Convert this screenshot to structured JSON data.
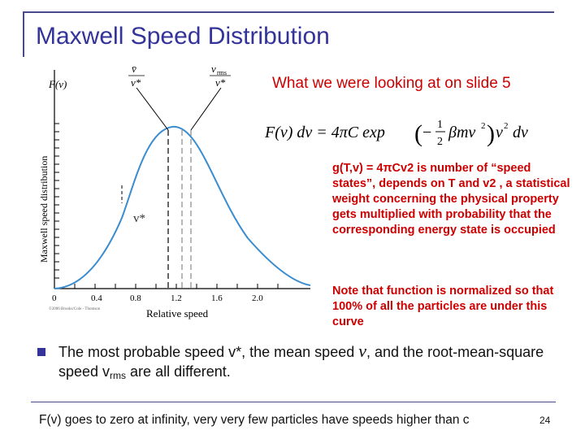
{
  "slide": {
    "title": "Maxwell Speed Distribution",
    "subtitle": "What we were looking at on slide 5",
    "paragraph1": "g(T,v) = 4πCv2 is number of “speed states”, depends on T and v2 , a statistical weight concerning the physical property gets multiplied with probability that the corresponding energy state is occupied",
    "paragraph2": "Note that function is normalized so that 100% of all the particles are under this curve",
    "bullet": {
      "part1": "The most probable speed v*, the mean speed",
      "vbar": "v",
      "part2": ", and the root-mean-square speed v",
      "rms_sub": "rms",
      "part3": " are all different."
    },
    "footer": "F(v) goes to zero at infinity, very very few particles have speeds higher than c",
    "page_number": "24"
  },
  "graph": {
    "y_axis_label": "Maxwell speed distribution",
    "fv_label": "F(v)",
    "x_axis_label": "Relative speed",
    "x_ticks": [
      "0",
      "0.4",
      "0.8",
      "1.2",
      "1.6",
      "2.0"
    ],
    "vstar_label": "v*",
    "copyright": "©2006 Brooks/Cole - Thomson",
    "top_labels": {
      "vbar": "v̄",
      "vstar_den": "v*",
      "vrms": "v",
      "vrms_sub": "rms",
      "vrms_den": "v*"
    }
  },
  "formula": {
    "lhs": "F(v) dv = 4πC exp",
    "exponent_num": "1",
    "exponent_den": "2",
    "rest": "βmv",
    "power": "2",
    "tail": "v",
    "tail_power": "2",
    "dv": "dv"
  },
  "colors": {
    "title": "#333399",
    "red_text": "#cc0000",
    "curve": "#3a8ccf"
  }
}
